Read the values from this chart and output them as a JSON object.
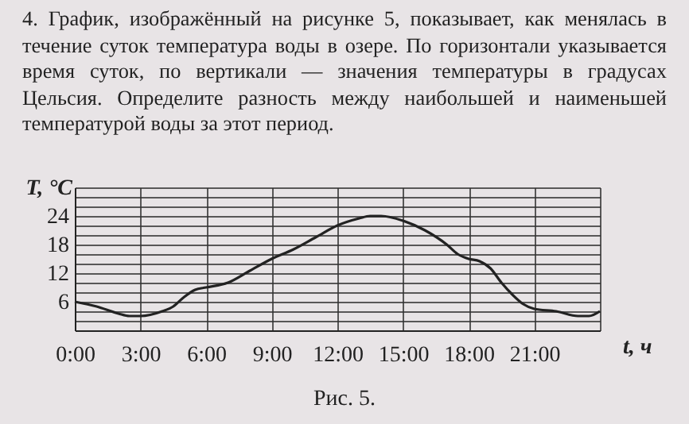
{
  "chart_data": {
    "type": "line",
    "title": "4. График, изображённый на рисунке 5, показывает, как менялась в течение суток температура воды в озере. По горизонтали указывается время суток, по вертикали — значения температуры в градусах Цельсия. Определите разность между наибольшей и наименьшей температурой воды за этот период.",
    "xlabel": "t, ч",
    "ylabel": "T, °C",
    "annotations": [
      "Рис. 5."
    ],
    "x": [
      0,
      1,
      2,
      2.5,
      3,
      4,
      4.5,
      5,
      5.5,
      6,
      7,
      8,
      9,
      10,
      11,
      12,
      13,
      13.5,
      14,
      15,
      16,
      17,
      17.5,
      18,
      18.5,
      19,
      19.5,
      20,
      20.5,
      21,
      22,
      23,
      23.5,
      24
    ],
    "series": [
      {
        "color": "#222222",
        "values": [
          6,
          5,
          3.5,
          3,
          3,
          4,
          5,
          7,
          8.5,
          9,
          10,
          12.5,
          15,
          17,
          19.5,
          22,
          23.5,
          24,
          24,
          23,
          21,
          18,
          16,
          15,
          14.5,
          13,
          10,
          7.5,
          5.5,
          4.5,
          4,
          3,
          3,
          4
        ]
      }
    ],
    "xlim": [
      0,
      24
    ],
    "ylim": [
      0,
      30
    ],
    "xticks": [
      {
        "value": 0,
        "label": "0:00"
      },
      {
        "value": 3,
        "label": "3:00"
      },
      {
        "value": 6,
        "label": "6:00"
      },
      {
        "value": 9,
        "label": "9:00"
      },
      {
        "value": 12,
        "label": "12:00"
      },
      {
        "value": 15,
        "label": "15:00"
      },
      {
        "value": 18,
        "label": "18:00"
      },
      {
        "value": 21,
        "label": "21:00"
      },
      {
        "value": 24,
        "label": null
      }
    ],
    "yticks": [
      {
        "value": 2,
        "label": null
      },
      {
        "value": 4,
        "label": null
      },
      6,
      {
        "value": 8,
        "label": null
      },
      {
        "value": 10,
        "label": null
      },
      12,
      {
        "value": 14,
        "label": null
      },
      {
        "value": 16,
        "label": null
      },
      18,
      {
        "value": 20,
        "label": null
      },
      {
        "value": 22,
        "label": null
      },
      24,
      {
        "value": 26,
        "label": null
      },
      {
        "value": 28,
        "label": null
      },
      {
        "value": 30,
        "label": null
      }
    ],
    "grid": true,
    "marker": "none",
    "line_style": "solid"
  }
}
